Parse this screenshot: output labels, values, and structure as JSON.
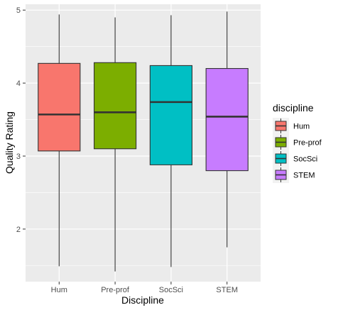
{
  "chart_data": {
    "type": "boxplot",
    "xlabel": "Discipline",
    "ylabel": "Quality Rating",
    "ylim": [
      1.28,
      5.08
    ],
    "yticks": [
      2,
      3,
      4,
      5
    ],
    "grid": true,
    "legend": {
      "title": "discipline",
      "placement": "right"
    },
    "categories": [
      "Hum",
      "Pre-prof",
      "SocSci",
      "STEM"
    ],
    "boxes": [
      {
        "name": "Hum",
        "min": 1.49,
        "q1": 3.07,
        "median": 3.57,
        "q3": 4.27,
        "max": 4.94,
        "color": "#F8766D"
      },
      {
        "name": "Pre-prof",
        "min": 1.42,
        "q1": 3.1,
        "median": 3.6,
        "q3": 4.28,
        "max": 4.9,
        "color": "#7CAE00"
      },
      {
        "name": "SocSci",
        "min": 1.48,
        "q1": 2.88,
        "median": 3.74,
        "q3": 4.24,
        "max": 4.93,
        "color": "#00BFC4"
      },
      {
        "name": "STEM",
        "min": 1.75,
        "q1": 2.8,
        "median": 3.54,
        "q3": 4.2,
        "max": 4.98,
        "color": "#C77CFF"
      }
    ]
  }
}
